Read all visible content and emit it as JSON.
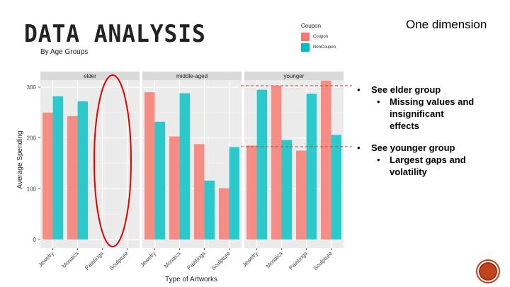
{
  "slide": {
    "title": "DATA ANALYSIS",
    "subtitle": "By Age Groups",
    "corner_label": "One dimension"
  },
  "legend": {
    "title": "Coupon",
    "items": [
      {
        "label": "Coupon",
        "color": "#f8766d"
      },
      {
        "label": "NonCoupon",
        "color": "#00bfc4"
      }
    ]
  },
  "bullets": [
    {
      "text": "See elder group",
      "sub": [
        "Missing values and insignificant effects"
      ]
    },
    {
      "text": "See younger group",
      "sub": [
        "Largest gaps and volatility"
      ]
    }
  ],
  "chart_data": {
    "type": "bar",
    "xlabel": "Type of Artworks",
    "ylabel": "Average Spending",
    "ylim": [
      0,
      320
    ],
    "yticks": [
      0,
      100,
      200,
      300
    ],
    "categories": [
      "Jewelry",
      "Mosaics",
      "Paintings",
      "Sculpture"
    ],
    "grid": true,
    "legend_position": "top",
    "panels": [
      {
        "name": "elder",
        "series": [
          {
            "name": "Coupon",
            "values": [
              250,
              243,
              null,
              null
            ]
          },
          {
            "name": "NonCoupon",
            "values": [
              282,
              272,
              null,
              null
            ]
          }
        ]
      },
      {
        "name": "middle-aged",
        "series": [
          {
            "name": "Coupon",
            "values": [
              290,
              203,
              188,
              101
            ]
          },
          {
            "name": "NonCoupon",
            "values": [
              232,
              288,
              116,
              182
            ]
          }
        ]
      },
      {
        "name": "younger",
        "series": [
          {
            "name": "Coupon",
            "values": [
              185,
              303,
              175,
              313
            ]
          },
          {
            "name": "NonCoupon",
            "values": [
              295,
              196,
              287,
              206
            ]
          }
        ]
      }
    ]
  }
}
